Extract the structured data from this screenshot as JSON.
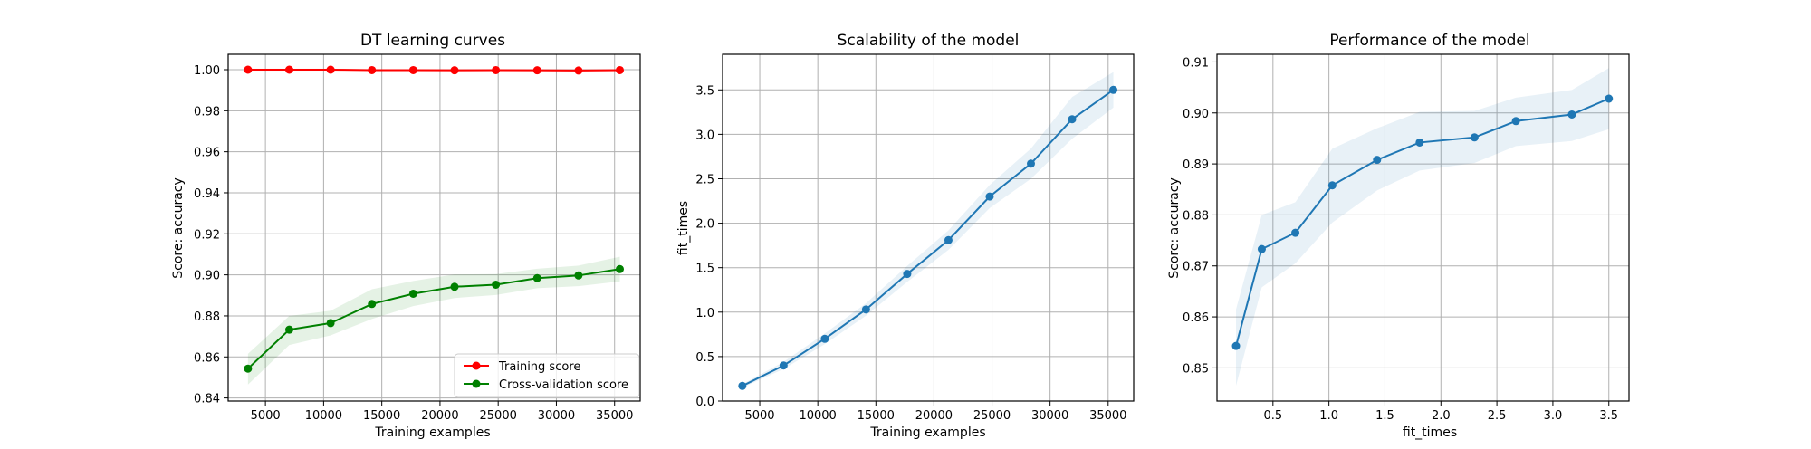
{
  "chart_data": [
    {
      "type": "line",
      "title": "DT learning curves",
      "xlabel": "Training examples",
      "ylabel": "Score: accuracy",
      "xlim": [
        1800,
        37200
      ],
      "ylim": [
        0.8385,
        1.0075
      ],
      "xticks": [
        5000,
        10000,
        15000,
        20000,
        25000,
        30000,
        35000
      ],
      "xtick_labels": [
        "5000",
        "10000",
        "15000",
        "20000",
        "25000",
        "30000",
        "35000"
      ],
      "yticks": [
        0.84,
        0.86,
        0.88,
        0.9,
        0.92,
        0.94,
        0.96,
        0.98,
        1.0
      ],
      "ytick_labels": [
        "0.84",
        "0.86",
        "0.88",
        "0.90",
        "0.92",
        "0.94",
        "0.96",
        "0.98",
        "1.00"
      ],
      "grid": true,
      "legend": "lower-right",
      "x": [
        3500,
        7050,
        10600,
        14150,
        17700,
        21250,
        24800,
        28350,
        31900,
        35450
      ],
      "series": [
        {
          "name": "Training score",
          "color": "#ff0000",
          "values": [
            1.0,
            1.0,
            1.0,
            0.9998,
            0.9998,
            0.9997,
            0.9998,
            0.9997,
            0.9996,
            0.9998
          ],
          "band_lower": [
            0.9995,
            0.9995,
            0.9995,
            0.9993,
            0.9993,
            0.9992,
            0.9993,
            0.9992,
            0.9991,
            0.9993
          ],
          "band_upper": [
            1.0005,
            1.0005,
            1.0005,
            1.0003,
            1.0003,
            1.0002,
            1.0003,
            1.0002,
            1.0001,
            1.0003
          ]
        },
        {
          "name": "Cross-validation score",
          "color": "#008000",
          "values": [
            0.8543,
            0.8733,
            0.8765,
            0.8858,
            0.8908,
            0.8942,
            0.8952,
            0.8984,
            0.8997,
            0.9028
          ],
          "band_lower": [
            0.8465,
            0.8658,
            0.8705,
            0.8785,
            0.8848,
            0.8887,
            0.8902,
            0.8935,
            0.8945,
            0.8968
          ],
          "band_upper": [
            0.8615,
            0.88,
            0.8825,
            0.893,
            0.897,
            0.9002,
            0.9004,
            0.903,
            0.9045,
            0.9088
          ]
        }
      ]
    },
    {
      "type": "line",
      "title": "Scalability of the model",
      "xlabel": "Training examples",
      "ylabel": "fit_times",
      "xlim": [
        1800,
        37200
      ],
      "ylim": [
        -0.0,
        3.9
      ],
      "xticks": [
        5000,
        10000,
        15000,
        20000,
        25000,
        30000,
        35000
      ],
      "xtick_labels": [
        "5000",
        "10000",
        "15000",
        "20000",
        "25000",
        "30000",
        "35000"
      ],
      "yticks": [
        0.0,
        0.5,
        1.0,
        1.5,
        2.0,
        2.5,
        3.0,
        3.5
      ],
      "ytick_labels": [
        "0.0",
        "0.5",
        "1.0",
        "1.5",
        "2.0",
        "2.5",
        "3.0",
        "3.5"
      ],
      "grid": true,
      "x": [
        3500,
        7050,
        10600,
        14150,
        17700,
        21250,
        24800,
        28350,
        31900,
        35450
      ],
      "series": [
        {
          "color": "#1f77b4",
          "values": [
            0.17,
            0.4,
            0.7,
            1.03,
            1.43,
            1.81,
            2.3,
            2.67,
            3.17,
            3.5
          ],
          "band_lower": [
            0.15,
            0.36,
            0.64,
            0.96,
            1.34,
            1.7,
            2.17,
            2.5,
            2.95,
            3.3
          ],
          "band_upper": [
            0.19,
            0.44,
            0.76,
            1.1,
            1.52,
            1.92,
            2.43,
            2.84,
            3.42,
            3.7
          ]
        }
      ]
    },
    {
      "type": "line",
      "title": "Performance of the model",
      "xlabel": "fit_times",
      "ylabel": "Score: accuracy",
      "xlim": [
        0.0,
        3.68
      ],
      "ylim": [
        0.8435,
        0.9115
      ],
      "xticks": [
        0.5,
        1.0,
        1.5,
        2.0,
        2.5,
        3.0,
        3.5
      ],
      "xtick_labels": [
        "0.5",
        "1.0",
        "1.5",
        "2.0",
        "2.5",
        "3.0",
        "3.5"
      ],
      "yticks": [
        0.85,
        0.86,
        0.87,
        0.88,
        0.89,
        0.9,
        0.91
      ],
      "ytick_labels": [
        "0.85",
        "0.86",
        "0.87",
        "0.88",
        "0.89",
        "0.90",
        "0.91"
      ],
      "grid": true,
      "x": [
        0.17,
        0.4,
        0.7,
        1.03,
        1.43,
        1.81,
        2.3,
        2.67,
        3.17,
        3.5
      ],
      "series": [
        {
          "color": "#1f77b4",
          "values": [
            0.8543,
            0.8733,
            0.8765,
            0.8858,
            0.8908,
            0.8942,
            0.8952,
            0.8984,
            0.8997,
            0.9028
          ],
          "band_lower": [
            0.8465,
            0.8658,
            0.8705,
            0.8785,
            0.8848,
            0.8887,
            0.8902,
            0.8935,
            0.8945,
            0.8968
          ],
          "band_upper": [
            0.8615,
            0.88,
            0.8825,
            0.893,
            0.897,
            0.9002,
            0.9004,
            0.903,
            0.9045,
            0.9088
          ]
        }
      ]
    }
  ]
}
